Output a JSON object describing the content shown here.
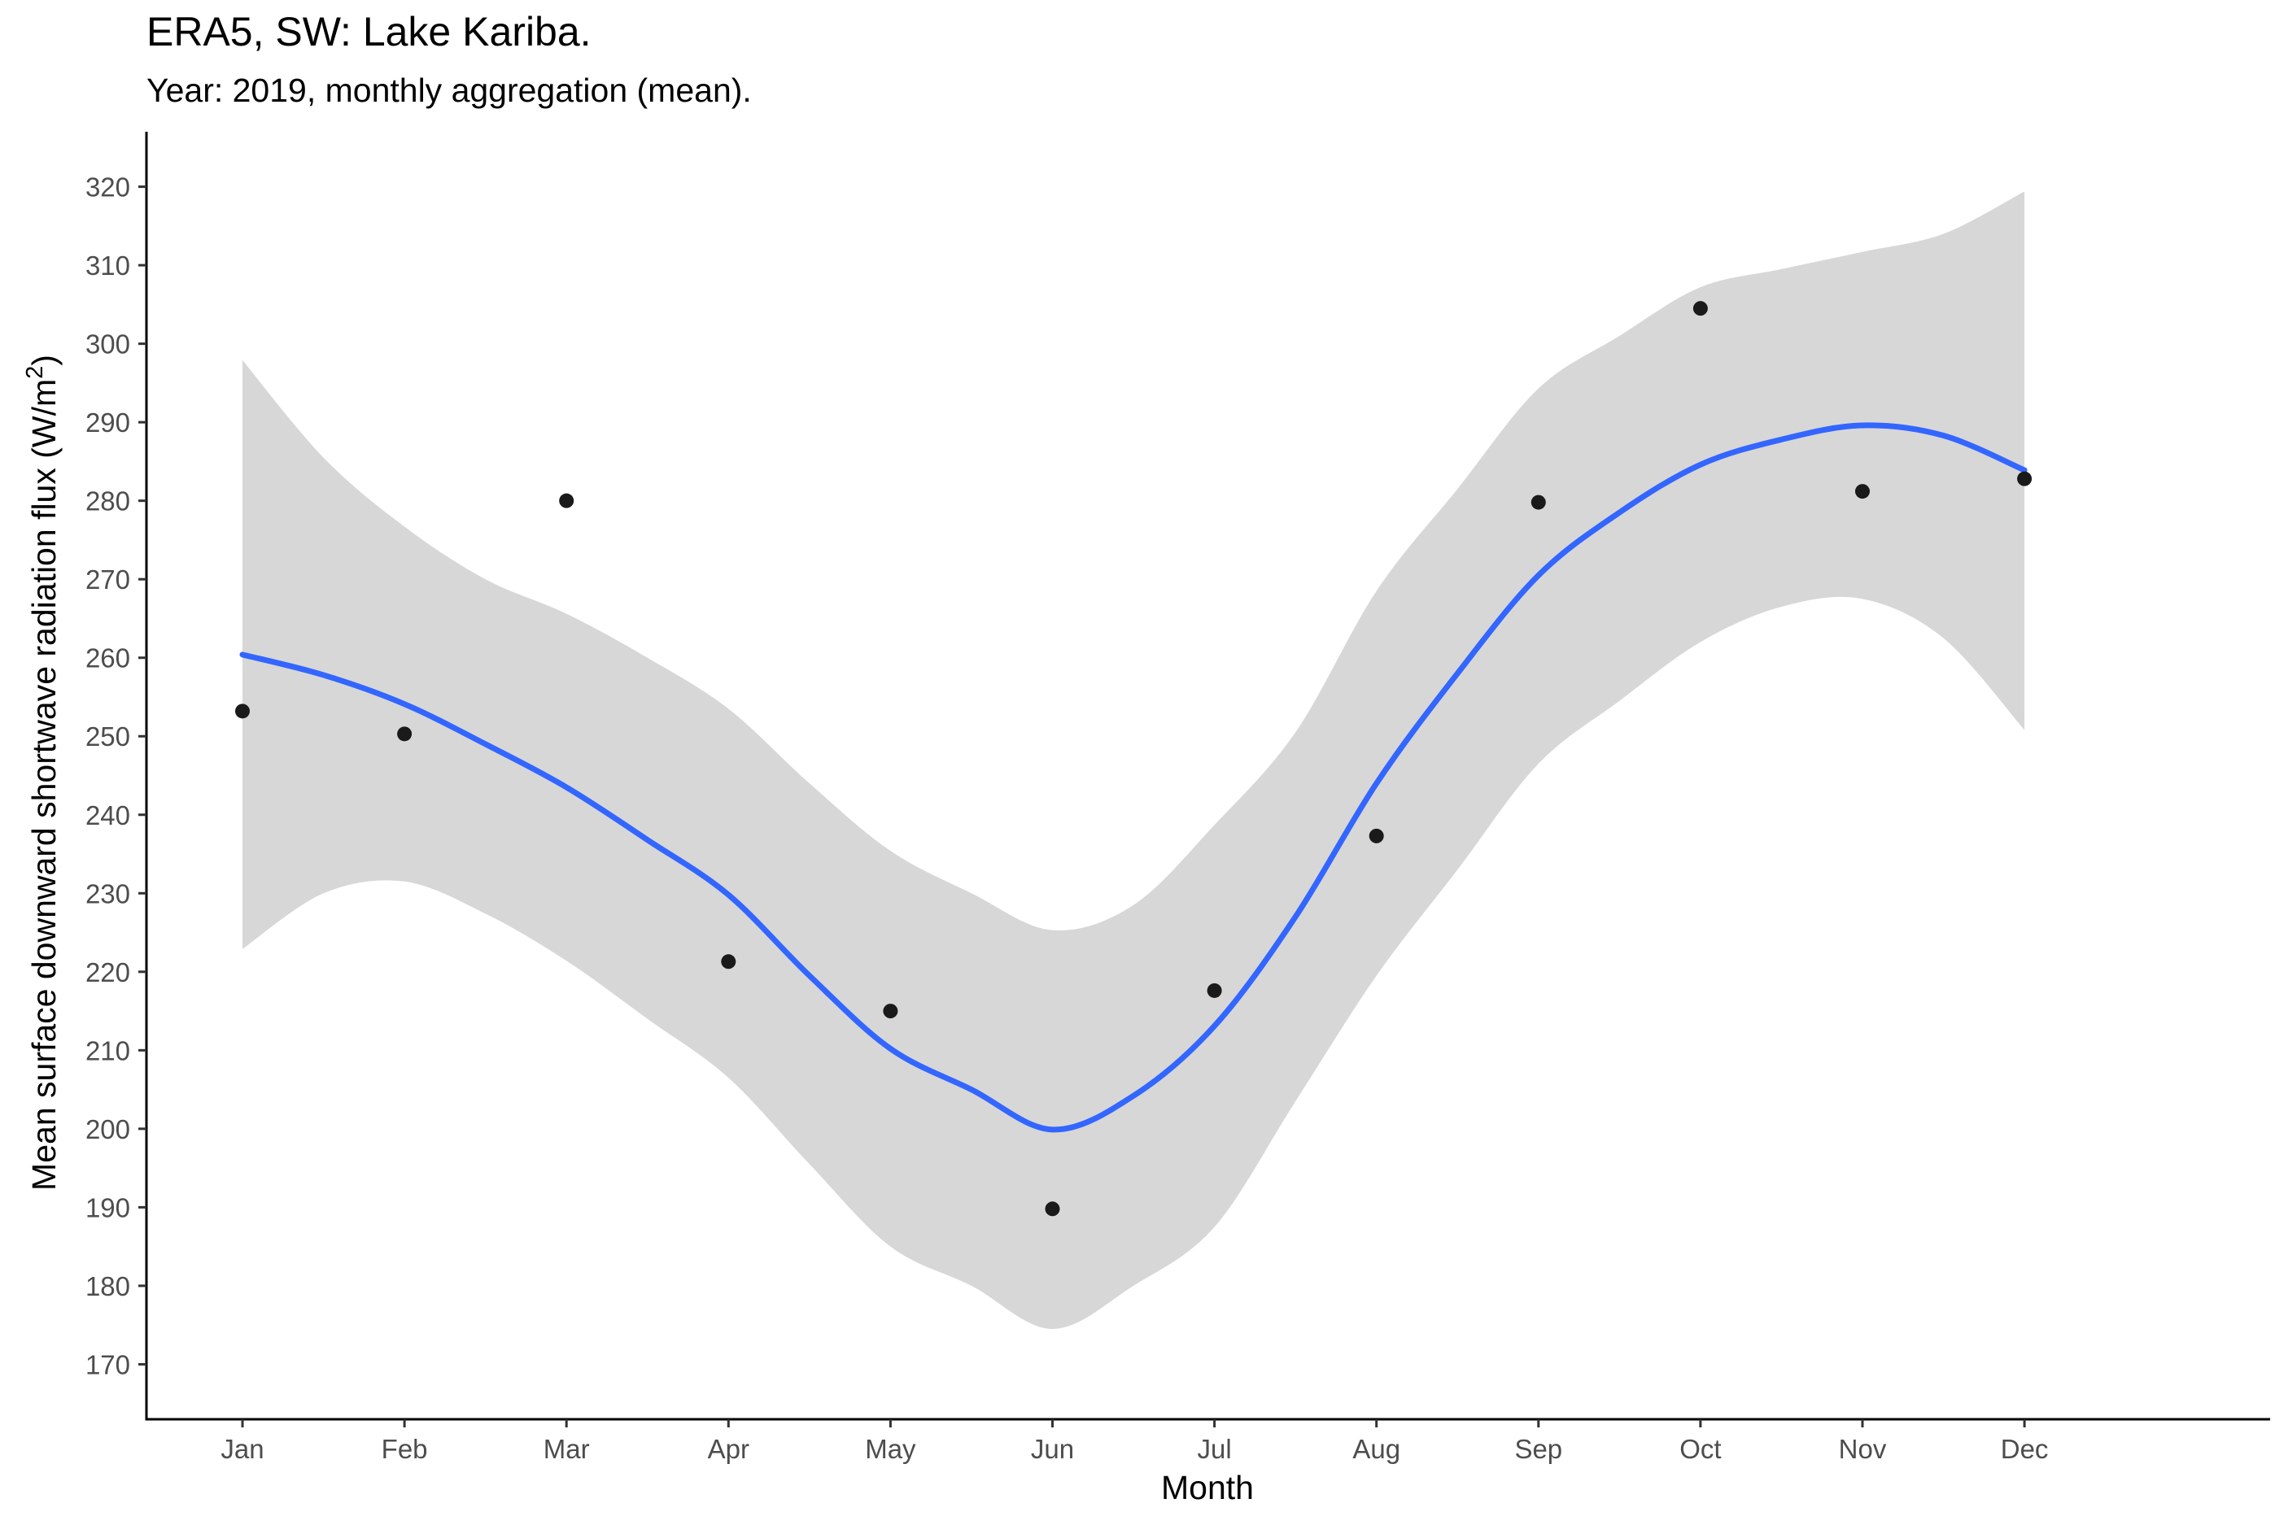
{
  "chart_data": {
    "type": "scatter",
    "title": "ERA5, SW: Lake Kariba.",
    "subtitle": "Year: 2019, monthly aggregation (mean).",
    "xlabel": "Month",
    "ylabel": {
      "prefix": "Mean surface downward shortwave radiation flux (W/m",
      "superscript": "2",
      "suffix": ")"
    },
    "categories": [
      "Jan",
      "Feb",
      "Mar",
      "Apr",
      "May",
      "Jun",
      "Jul",
      "Aug",
      "Sep",
      "Oct",
      "Nov",
      "Dec"
    ],
    "ylim": [
      163,
      327
    ],
    "y_ticks": [
      170,
      180,
      190,
      200,
      210,
      220,
      230,
      240,
      250,
      260,
      270,
      280,
      290,
      300,
      310,
      320
    ],
    "grid": false,
    "legend": "none",
    "series": [
      {
        "kind": "points",
        "values": [
          253.2,
          250.3,
          280.0,
          221.3,
          215.0,
          189.8,
          217.6,
          237.3,
          279.8,
          304.5,
          281.2,
          282.8
        ],
        "color": "#1a1a1a"
      },
      {
        "kind": "smooth",
        "x": [
          1,
          1.5,
          2,
          2.5,
          3,
          3.5,
          4,
          4.5,
          5,
          5.5,
          6,
          6.5,
          7,
          7.5,
          8,
          8.5,
          9,
          9.5,
          10,
          10.5,
          11,
          11.5,
          12
        ],
        "values": [
          260.4,
          257.8,
          254.1,
          249.0,
          243.5,
          236.8,
          229.8,
          219.5,
          210.2,
          205.0,
          199.9,
          204.2,
          213.1,
          227.0,
          244.0,
          258.0,
          270.5,
          278.5,
          284.6,
          287.8,
          289.6,
          288.3,
          283.9
        ],
        "lower": [
          222.9,
          230.0,
          231.5,
          227.4,
          221.4,
          214.0,
          206.5,
          195.5,
          185.0,
          180.0,
          174.5,
          180.0,
          187.5,
          203.5,
          219.5,
          233.0,
          246.5,
          254.5,
          262.0,
          266.5,
          267.5,
          262.5,
          250.8
        ],
        "upper": [
          297.9,
          285.5,
          276.7,
          270.0,
          265.6,
          260.0,
          253.5,
          244.0,
          235.4,
          230.0,
          225.3,
          228.5,
          238.7,
          250.5,
          268.5,
          281.5,
          294.3,
          301.0,
          307.2,
          309.5,
          311.7,
          314.0,
          319.4
        ],
        "color": "#3366FF",
        "band_color": "#d7d7d7"
      }
    ]
  }
}
